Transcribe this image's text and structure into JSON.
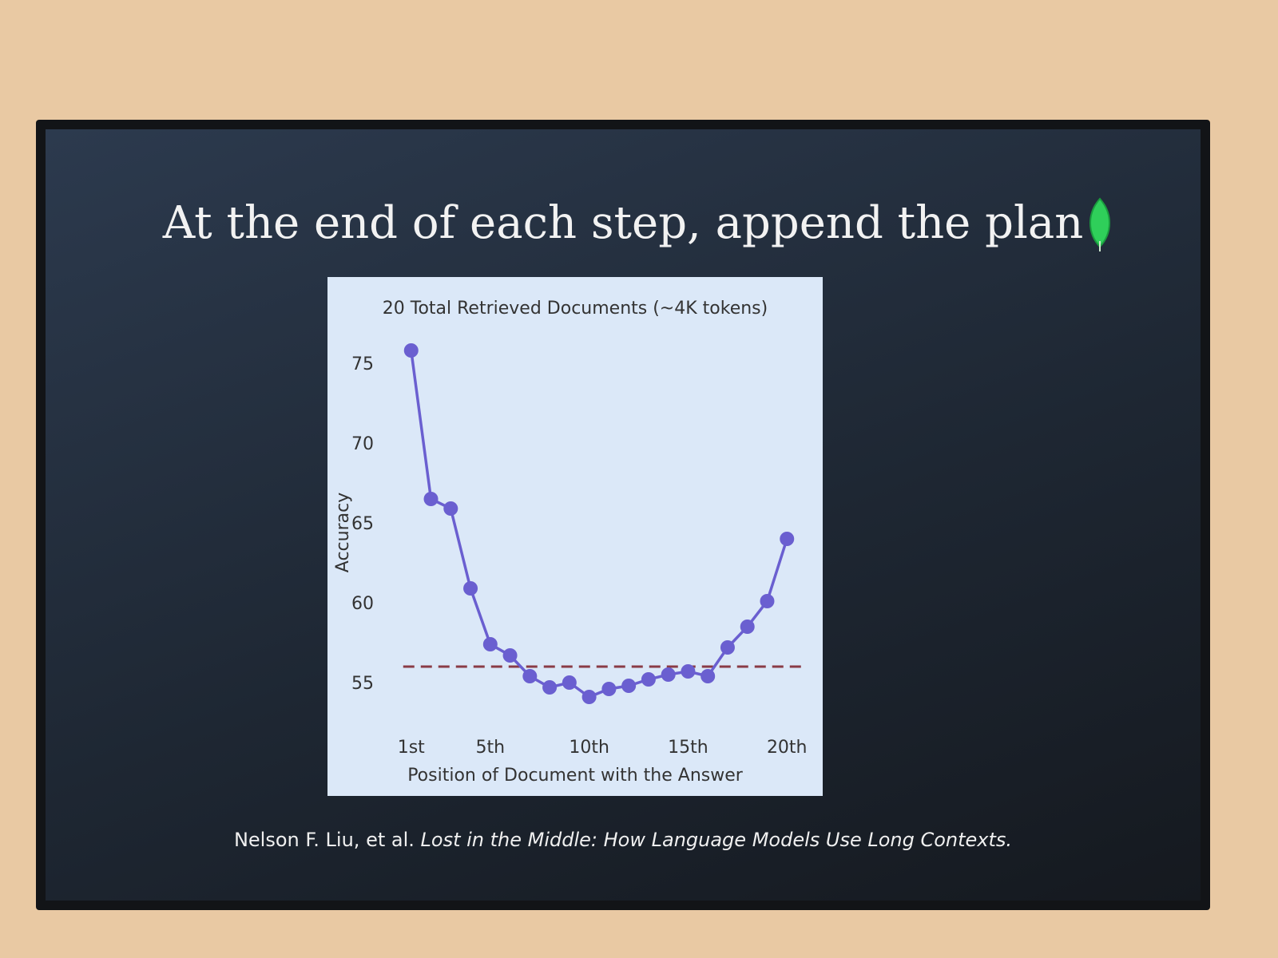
{
  "slide": {
    "title": "At the end of each step, append the plan",
    "citation_authors": "Nelson F. Liu, et al.",
    "citation_title": "Lost in the Middle: How Language Models Use Long Contexts."
  },
  "chart_data": {
    "type": "line",
    "title": "20 Total Retrieved Documents (~4K tokens)",
    "x_label": "Position of Document with the Answer",
    "y_label": "Accuracy",
    "x": [
      1,
      2,
      3,
      4,
      5,
      6,
      7,
      8,
      9,
      10,
      11,
      12,
      13,
      14,
      15,
      16,
      17,
      18,
      19,
      20
    ],
    "values": [
      75.9,
      66.6,
      66.0,
      61.0,
      57.5,
      56.8,
      55.5,
      54.8,
      55.1,
      54.2,
      54.7,
      54.9,
      55.3,
      55.6,
      55.8,
      55.5,
      57.3,
      58.6,
      60.2,
      64.1
    ],
    "color": "#6a5fd0",
    "reference": 56.1,
    "reference_color": "#8a3b46",
    "xlim": [
      0,
      21
    ],
    "ylim": [
      52.5,
      76.5
    ],
    "xticks": [
      {
        "value": 1,
        "label": "1st"
      },
      {
        "value": 5,
        "label": "5th"
      },
      {
        "value": 10,
        "label": "10th"
      },
      {
        "value": 15,
        "label": "15th"
      },
      {
        "value": 20,
        "label": "20th"
      }
    ],
    "yticks": [
      55,
      60,
      65,
      70,
      75
    ],
    "grid": false
  }
}
